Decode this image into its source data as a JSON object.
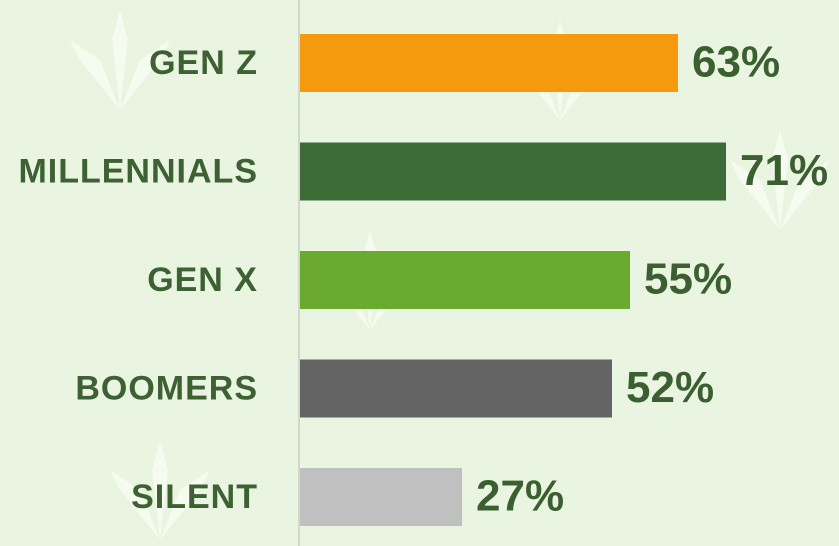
{
  "chart_data": {
    "type": "bar",
    "orientation": "horizontal",
    "categories": [
      "GEN Z",
      "MILLENNIALS",
      "GEN X",
      "BOOMERS",
      "SILENT"
    ],
    "values": [
      63,
      71,
      55,
      52,
      27
    ],
    "value_labels": [
      "63%",
      "71%",
      "55%",
      "52%",
      "27%"
    ],
    "colors": [
      "#f59a0c",
      "#3d6b38",
      "#6aaa2e",
      "#646464",
      "#c0c0c0"
    ]
  }
}
